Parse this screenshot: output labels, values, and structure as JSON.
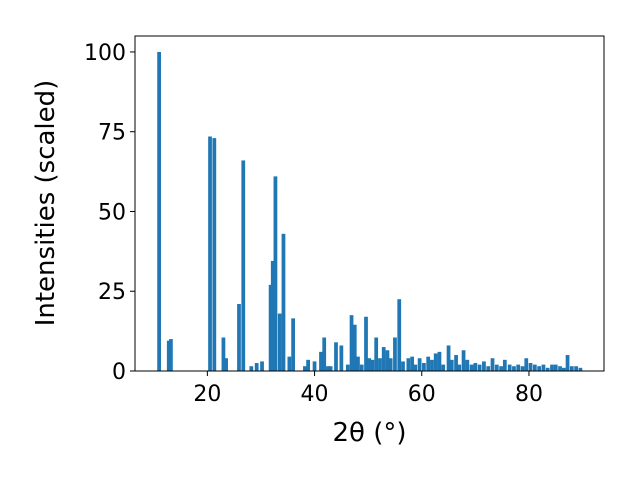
{
  "chart_data": {
    "type": "bar",
    "xlabel": "2θ (°)",
    "ylabel": "Intensities (scaled)",
    "xlim": [
      6.5,
      94.0
    ],
    "ylim": [
      0,
      105
    ],
    "xticks": [
      "20",
      "40",
      "60",
      "80"
    ],
    "yticks": [
      "0",
      "25",
      "50",
      "75",
      "100"
    ],
    "bar_color": "#1f77b4",
    "bar_width_deg": 0.7,
    "x": [
      11.0,
      12.8,
      13.2,
      20.5,
      21.3,
      23.0,
      23.5,
      25.9,
      26.7,
      28.2,
      29.2,
      30.2,
      31.8,
      32.2,
      32.7,
      33.5,
      34.2,
      35.3,
      36.0,
      38.2,
      38.8,
      40.0,
      41.2,
      41.8,
      42.5,
      43.0,
      44.0,
      45.0,
      46.2,
      46.9,
      47.5,
      48.1,
      48.8,
      49.6,
      50.2,
      50.8,
      51.5,
      52.2,
      52.9,
      53.6,
      54.2,
      55.0,
      55.8,
      56.5,
      57.5,
      58.2,
      58.8,
      59.6,
      60.4,
      61.2,
      61.9,
      62.6,
      63.3,
      64.0,
      65.0,
      65.6,
      66.4,
      67.0,
      67.8,
      68.5,
      69.3,
      70.0,
      70.8,
      71.6,
      72.4,
      73.2,
      74.0,
      74.8,
      75.5,
      76.4,
      77.2,
      78.0,
      78.8,
      79.5,
      80.3,
      81.1,
      81.9,
      82.7,
      83.5,
      84.3,
      85.0,
      85.8,
      86.5,
      87.2,
      88.0,
      88.8,
      89.6
    ],
    "values": [
      100,
      9.5,
      10,
      73.5,
      73,
      10.5,
      4,
      21,
      66,
      1.5,
      2.5,
      3,
      27,
      34.5,
      61,
      18,
      43,
      4.5,
      16.5,
      1.5,
      3.5,
      3,
      6,
      10.5,
      1.5,
      1.5,
      9,
      8,
      2,
      17.5,
      14.5,
      4.5,
      2,
      17,
      4,
      3.5,
      10.5,
      4,
      7.5,
      6.5,
      4,
      10.5,
      22.5,
      3,
      4,
      4.5,
      2,
      4,
      2.5,
      4.5,
      3.5,
      5.5,
      6,
      2,
      8,
      3.5,
      5,
      2,
      6.5,
      3.5,
      2,
      2.5,
      2,
      3,
      1.5,
      4,
      2,
      1.5,
      3.5,
      2,
      1.5,
      2,
      1.5,
      4,
      2.5,
      2,
      1.5,
      2,
      1,
      2,
      2,
      1.5,
      1,
      5,
      1.5,
      1.5,
      1
    ]
  }
}
